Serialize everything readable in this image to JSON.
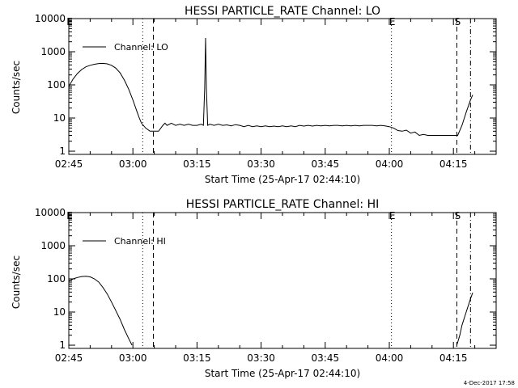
{
  "footer": {
    "timestamp": "4-Dec-2017 17:58"
  },
  "chart_data": [
    {
      "type": "line",
      "title": "HESSI PARTICLE_RATE Channel: LO",
      "xlabel": "Start Time (25-Apr-17 02:44:10)",
      "ylabel": "Counts/sec",
      "y_scale": "log",
      "ylim": [
        0.8,
        10000
      ],
      "xlim_minutes": [
        0,
        100
      ],
      "x_tick_labels": [
        "02:45",
        "03:00",
        "03:15",
        "03:30",
        "03:45",
        "04:00",
        "04:15"
      ],
      "x_tick_minutes": [
        0,
        15,
        30,
        45,
        60,
        75,
        90
      ],
      "y_tick_labels": [
        "1",
        "10",
        "100",
        "1000",
        "10000"
      ],
      "y_tick_values": [
        1,
        10,
        100,
        1000,
        10000
      ],
      "legend": {
        "label": "Channel: LO",
        "placement": "top-left"
      },
      "markers": [
        {
          "label": "E",
          "minute": 0,
          "style": "none"
        },
        {
          "label": "",
          "minute": 17.3,
          "style": "dotted"
        },
        {
          "label": "",
          "minute": 19.8,
          "style": "dashed"
        },
        {
          "label": "E",
          "minute": 75.5,
          "style": "dotted"
        },
        {
          "label": "S",
          "minute": 90.8,
          "style": "dashed"
        },
        {
          "label": "",
          "minute": 94.0,
          "style": "dashdot"
        }
      ],
      "series": [
        {
          "points": [
            [
              0,
              90
            ],
            [
              1,
              150
            ],
            [
              2,
              220
            ],
            [
              3,
              290
            ],
            [
              4,
              350
            ],
            [
              5,
              390
            ],
            [
              6,
              420
            ],
            [
              7,
              440
            ],
            [
              8,
              445
            ],
            [
              9,
              430
            ],
            [
              10,
              390
            ],
            [
              11,
              320
            ],
            [
              12,
              230
            ],
            [
              13,
              140
            ],
            [
              14,
              75
            ],
            [
              15,
              35
            ],
            [
              16,
              15
            ],
            [
              16.5,
              10
            ],
            [
              17,
              7
            ],
            [
              18,
              5
            ],
            [
              19,
              4
            ],
            [
              20,
              4
            ],
            [
              21,
              4
            ],
            [
              22,
              6
            ],
            [
              22.5,
              7
            ],
            [
              23,
              6
            ],
            [
              24,
              7
            ],
            [
              25,
              6
            ],
            [
              26,
              6.5
            ],
            [
              27,
              6
            ],
            [
              28,
              6.5
            ],
            [
              29,
              6
            ],
            [
              30,
              6
            ],
            [
              31,
              6.5
            ],
            [
              31.5,
              6
            ],
            [
              31.8,
              80
            ],
            [
              32,
              2600
            ],
            [
              32.2,
              80
            ],
            [
              32.5,
              6
            ],
            [
              33,
              6.5
            ],
            [
              34,
              6
            ],
            [
              35,
              6.5
            ],
            [
              36,
              6
            ],
            [
              37,
              6.2
            ],
            [
              38,
              5.8
            ],
            [
              39,
              6.3
            ],
            [
              40,
              6
            ],
            [
              41,
              5.5
            ],
            [
              42,
              6
            ],
            [
              43,
              5.5
            ],
            [
              44,
              5.8
            ],
            [
              45,
              5.5
            ],
            [
              46,
              5.8
            ],
            [
              47,
              5.5
            ],
            [
              48,
              5.7
            ],
            [
              49,
              5.5
            ],
            [
              50,
              5.8
            ],
            [
              51,
              5.5
            ],
            [
              52,
              5.8
            ],
            [
              53,
              5.5
            ],
            [
              54,
              6
            ],
            [
              55,
              5.7
            ],
            [
              56,
              6
            ],
            [
              57,
              5.7
            ],
            [
              58,
              6
            ],
            [
              59,
              5.8
            ],
            [
              60,
              6
            ],
            [
              61,
              5.8
            ],
            [
              62,
              6
            ],
            [
              63,
              6
            ],
            [
              64,
              5.8
            ],
            [
              65,
              6
            ],
            [
              66,
              5.8
            ],
            [
              67,
              6
            ],
            [
              68,
              5.8
            ],
            [
              69,
              6
            ],
            [
              70,
              6
            ],
            [
              71,
              6
            ],
            [
              72,
              5.8
            ],
            [
              73,
              6
            ],
            [
              74,
              5.8
            ],
            [
              75,
              5.5
            ],
            [
              76,
              5
            ],
            [
              77,
              4.2
            ],
            [
              78,
              4
            ],
            [
              79,
              4.3
            ],
            [
              80,
              3.5
            ],
            [
              81,
              3.8
            ],
            [
              82,
              3
            ],
            [
              83,
              3.2
            ],
            [
              84,
              3
            ],
            [
              85,
              3
            ],
            [
              86,
              3
            ],
            [
              87,
              3
            ],
            [
              88,
              3
            ],
            [
              89,
              3
            ],
            [
              90,
              3
            ],
            [
              91,
              3
            ],
            [
              92,
              6
            ],
            [
              93,
              15
            ],
            [
              94,
              35
            ],
            [
              94.5,
              50
            ]
          ]
        }
      ]
    },
    {
      "type": "line",
      "title": "HESSI PARTICLE_RATE Channel: HI",
      "xlabel": "Start Time (25-Apr-17 02:44:10)",
      "ylabel": "Counts/sec",
      "y_scale": "log",
      "ylim": [
        0.8,
        10000
      ],
      "xlim_minutes": [
        0,
        100
      ],
      "x_tick_labels": [
        "02:45",
        "03:00",
        "03:15",
        "03:30",
        "03:45",
        "04:00",
        "04:15"
      ],
      "x_tick_minutes": [
        0,
        15,
        30,
        45,
        60,
        75,
        90
      ],
      "y_tick_labels": [
        "1",
        "10",
        "100",
        "1000",
        "10000"
      ],
      "y_tick_values": [
        1,
        10,
        100,
        1000,
        10000
      ],
      "legend": {
        "label": "Channel: HI",
        "placement": "top-left"
      },
      "markers": [
        {
          "label": "E",
          "minute": 0,
          "style": "none"
        },
        {
          "label": "",
          "minute": 17.3,
          "style": "dotted"
        },
        {
          "label": "",
          "minute": 19.8,
          "style": "dashed"
        },
        {
          "label": "E",
          "minute": 75.5,
          "style": "dotted"
        },
        {
          "label": "S",
          "minute": 90.8,
          "style": "dashed"
        },
        {
          "label": "",
          "minute": 94.0,
          "style": "dashdot"
        }
      ],
      "series": [
        {
          "points": [
            [
              0,
              85
            ],
            [
              1,
              100
            ],
            [
              2,
              110
            ],
            [
              3,
              118
            ],
            [
              4,
              120
            ],
            [
              5,
              115
            ],
            [
              6,
              100
            ],
            [
              7,
              80
            ],
            [
              8,
              55
            ],
            [
              9,
              35
            ],
            [
              10,
              20
            ],
            [
              11,
              11
            ],
            [
              12,
              6
            ],
            [
              13,
              3
            ],
            [
              14,
              1.6
            ],
            [
              14.8,
              1
            ]
          ]
        },
        {
          "points": [
            [
              90.8,
              1
            ],
            [
              91.5,
              2
            ],
            [
              92,
              4
            ],
            [
              93,
              10
            ],
            [
              94,
              25
            ],
            [
              94.5,
              38
            ]
          ]
        }
      ]
    }
  ]
}
